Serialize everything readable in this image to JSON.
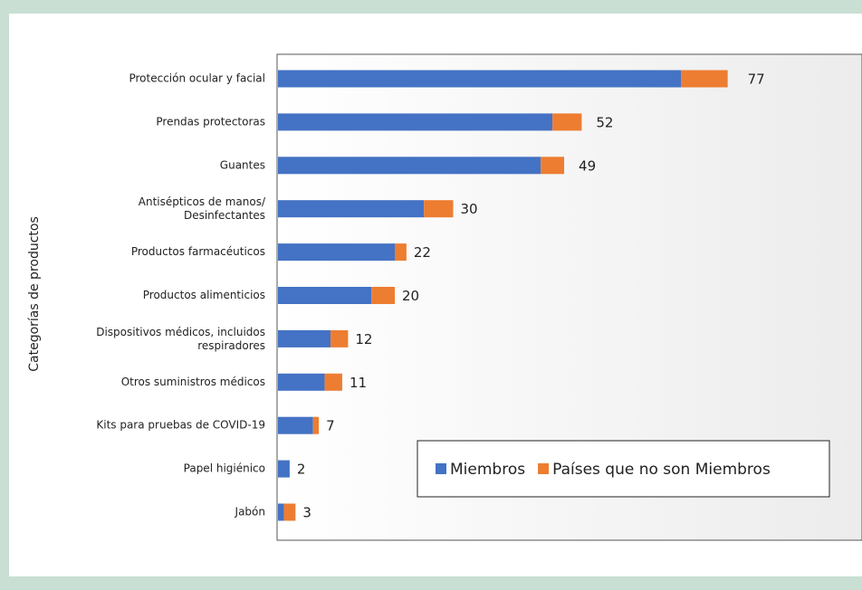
{
  "chart_data": {
    "type": "stacked-barh",
    "y_label": "Categorías de productos",
    "categories": [
      "Protección ocular y facial",
      "Prendas protectoras",
      "Guantes",
      "Antisépticos de manos/\nDesinfectantes",
      "Productos farmacéuticos",
      "Productos alimenticios",
      "Dispositivos médicos, incluidos\nrespiradores",
      "Otros suministros médicos",
      "Kits para pruebas de COVID-19",
      "Papel higiénico",
      "Jabón"
    ],
    "series": [
      {
        "name": "Miembros",
        "color": "#4472c4",
        "values": [
          69,
          47,
          45,
          25,
          20,
          16,
          9,
          8,
          6,
          2,
          1
        ]
      },
      {
        "name": "Países que no son Miembros",
        "color": "#ed7d31",
        "values": [
          8,
          5,
          4,
          5,
          2,
          4,
          3,
          3,
          1,
          0,
          2
        ]
      }
    ],
    "totals": [
      77,
      52,
      49,
      30,
      22,
      20,
      12,
      11,
      7,
      2,
      3
    ],
    "xlim": [
      0,
      100
    ],
    "legend": "lower right"
  }
}
